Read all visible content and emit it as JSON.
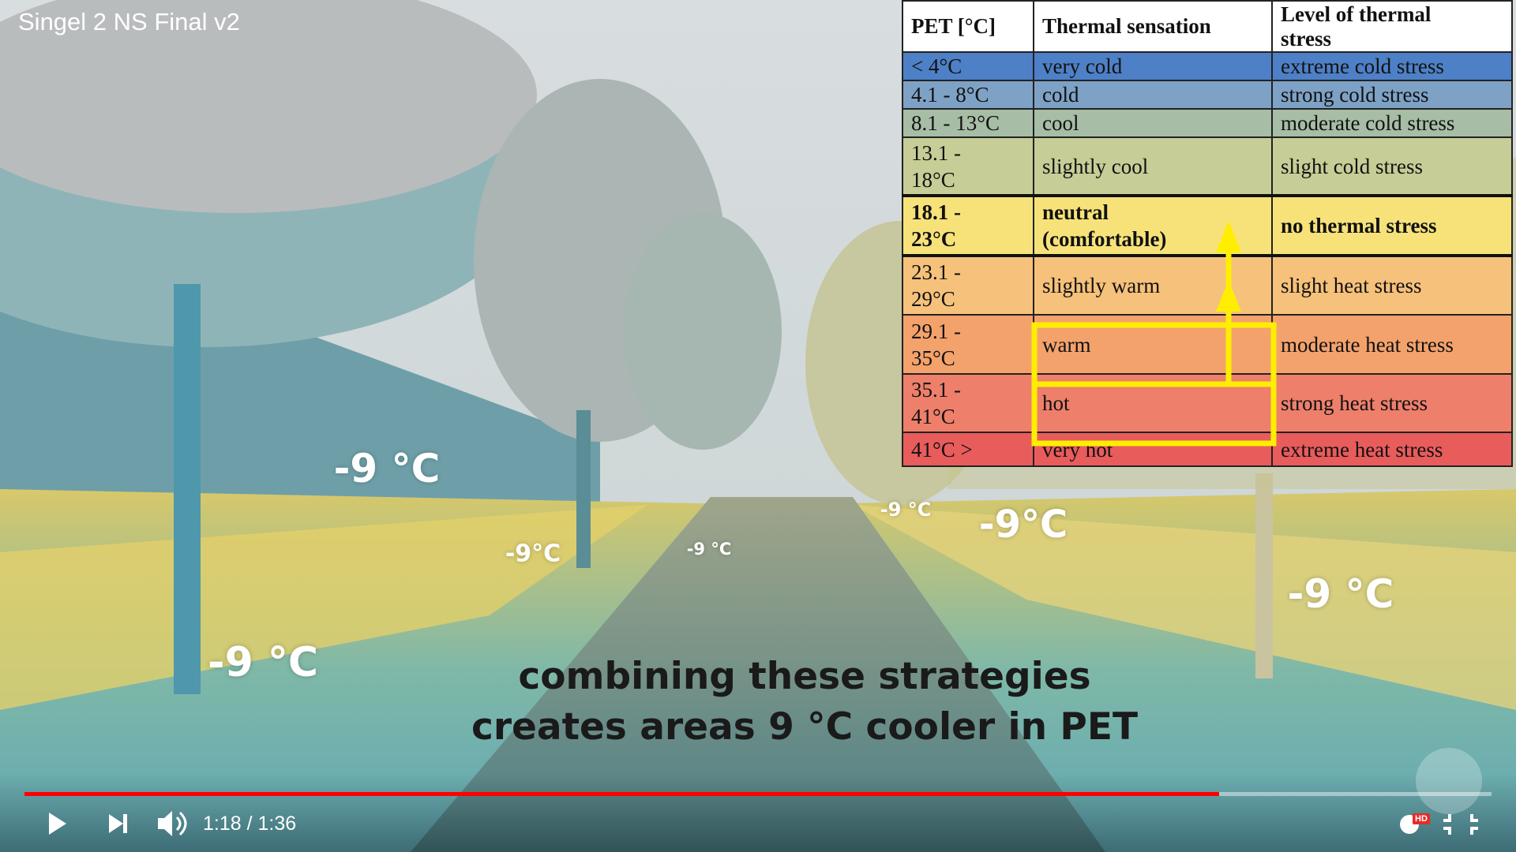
{
  "video_title": "Singel 2 NS Final v2",
  "overlay_labels": [
    "-9 °C",
    "-9°C",
    "-9 °C",
    "-9 °C",
    "-9°C",
    "-9 °C",
    "-9 °C"
  ],
  "caption": [
    "combining these strategies",
    "creates areas 9 °C cooler in PET"
  ],
  "table": {
    "headers": [
      "PET [°C]",
      "Thermal sensation",
      "Level of thermal\nstress"
    ],
    "rows": [
      [
        "< 4°C",
        "very cold",
        "extreme cold stress"
      ],
      [
        "4.1 - 8°C",
        "cold",
        "strong cold stress"
      ],
      [
        "8.1 - 13°C",
        "cool",
        "moderate cold stress"
      ],
      [
        "13.1 -\n18°C",
        "slightly cool",
        "slight cold stress"
      ],
      [
        "18.1 -\n23°C",
        "neutral\n(comfortable)",
        "no thermal stress"
      ],
      [
        "23.1 -\n29°C",
        "slightly warm",
        "slight heat stress"
      ],
      [
        "29.1 -\n35°C",
        "warm",
        "moderate heat stress"
      ],
      [
        "35.1 -\n41°C",
        "hot",
        "strong heat stress"
      ],
      [
        "41°C >",
        "very hot",
        "extreme heat stress"
      ]
    ]
  },
  "player": {
    "time": "1:18 / 1:36",
    "badge": "HD"
  }
}
